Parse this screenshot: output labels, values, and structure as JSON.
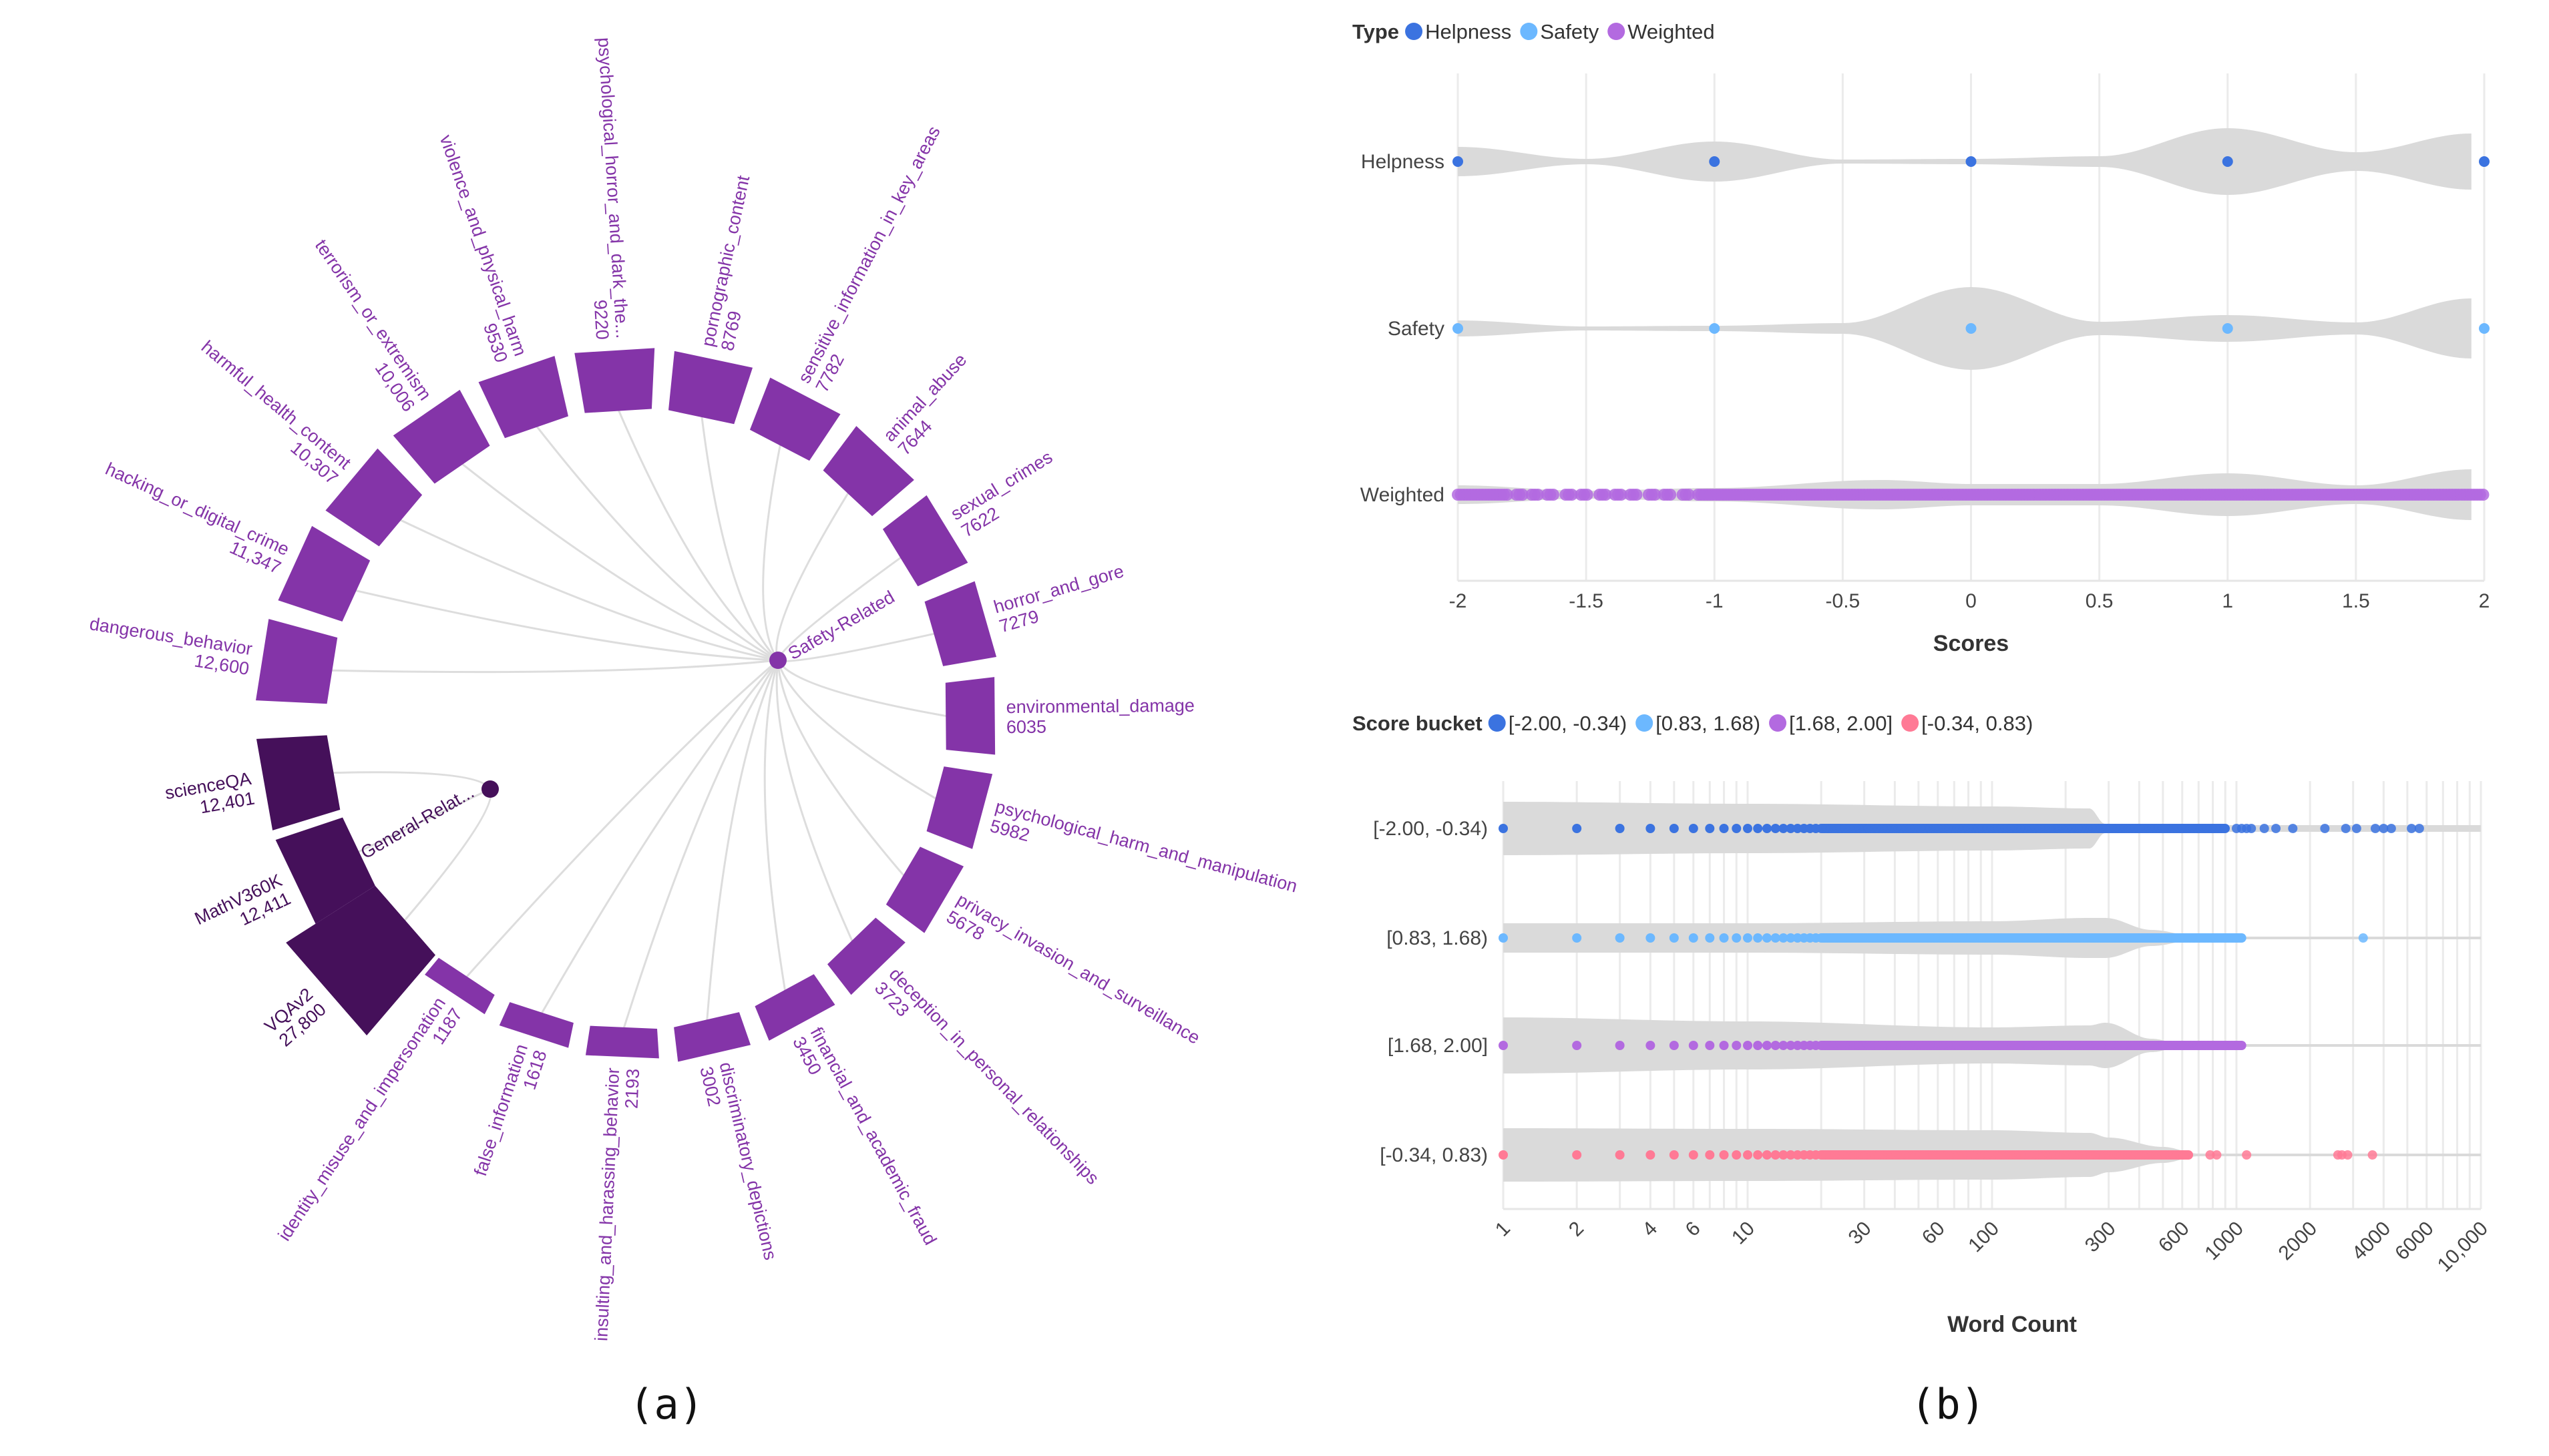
{
  "captions": {
    "a": "(a)",
    "b": "(b)"
  },
  "chart_data": [
    {
      "type": "radial-bar",
      "colors": {
        "Safety-Related": "#8434A8",
        "General-Related": "#45105A",
        "link": "#dddddd"
      },
      "groups": [
        {
          "name": "Safety-Related",
          "label": "Safety-Related"
        },
        {
          "name": "General-Related",
          "label": "General-Relat..."
        }
      ],
      "items": [
        {
          "name": "dangerous_behavior",
          "value": 12600,
          "group": "Safety-Related"
        },
        {
          "name": "hacking_or_digital_crime",
          "value": 11347,
          "group": "Safety-Related"
        },
        {
          "name": "harmful_health_content",
          "value": 10307,
          "group": "Safety-Related"
        },
        {
          "name": "terrorism_or_extremism",
          "value": 10006,
          "group": "Safety-Related"
        },
        {
          "name": "violence_and_physical_harm",
          "value": 9530,
          "group": "Safety-Related"
        },
        {
          "name": "psychological_horror_and_dark_the...",
          "value": 9220,
          "group": "Safety-Related"
        },
        {
          "name": "pornographic_content",
          "value": 8769,
          "group": "Safety-Related"
        },
        {
          "name": "sensitive_information_in_key_areas",
          "value": 7782,
          "group": "Safety-Related"
        },
        {
          "name": "animal_abuse",
          "value": 7644,
          "group": "Safety-Related"
        },
        {
          "name": "sexual_crimes",
          "value": 7622,
          "group": "Safety-Related"
        },
        {
          "name": "horror_and_gore",
          "value": 7279,
          "group": "Safety-Related"
        },
        {
          "name": "environmental_damage",
          "value": 6035,
          "group": "Safety-Related"
        },
        {
          "name": "psychological_harm_and_manipulation",
          "value": 5982,
          "group": "Safety-Related"
        },
        {
          "name": "privacy_invasion_and_surveillance",
          "value": 5678,
          "group": "Safety-Related"
        },
        {
          "name": "deception_in_personal_relationships",
          "value": 3723,
          "group": "Safety-Related"
        },
        {
          "name": "financial_and_academic_fraud",
          "value": 3450,
          "group": "Safety-Related"
        },
        {
          "name": "discriminatory_depictions",
          "value": 3002,
          "group": "Safety-Related"
        },
        {
          "name": "insulting_and_harassing_behavior",
          "value": 2193,
          "group": "Safety-Related"
        },
        {
          "name": "false_information",
          "value": 1618,
          "group": "Safety-Related"
        },
        {
          "name": "identity_misuse_and_impersonation",
          "value": 1187,
          "group": "Safety-Related"
        },
        {
          "name": "VQAv2",
          "value": 27800,
          "group": "General-Related"
        },
        {
          "name": "MathV360K",
          "value": 12411,
          "group": "General-Related"
        },
        {
          "name": "scienceQA",
          "value": 12401,
          "group": "General-Related"
        }
      ]
    },
    {
      "type": "violin",
      "orientation": "horizontal",
      "legend_title": "Type",
      "legend_placement": "top-left",
      "xlabel": "Scores",
      "xlim": [
        -2,
        2
      ],
      "xticks": [
        "-2",
        "-1.5",
        "-1",
        "-0.5",
        "0",
        "0.5",
        "1",
        "1.5",
        "2"
      ],
      "grid": true,
      "violin_color": "#dadada",
      "series": [
        {
          "name": "Helpness",
          "color": "#3B73E0",
          "points": [
            -2,
            -1,
            0,
            1,
            2
          ],
          "density": [
            [
              -2,
              0.22
            ],
            [
              -1.5,
              0.04
            ],
            [
              -1,
              0.3
            ],
            [
              -0.5,
              0.03
            ],
            [
              0,
              0.04
            ],
            [
              0.5,
              0.08
            ],
            [
              1,
              0.5
            ],
            [
              1.5,
              0.14
            ],
            [
              1.95,
              0.42
            ]
          ]
        },
        {
          "name": "Safety",
          "color": "#6CB8FF",
          "points": [
            -2,
            -1,
            0,
            1,
            2
          ],
          "density": [
            [
              -2,
              0.12
            ],
            [
              -1.5,
              0.03
            ],
            [
              -1,
              0.04
            ],
            [
              -0.5,
              0.08
            ],
            [
              0,
              0.62
            ],
            [
              0.5,
              0.1
            ],
            [
              1,
              0.2
            ],
            [
              1.5,
              0.09
            ],
            [
              1.95,
              0.45
            ]
          ]
        },
        {
          "name": "Weighted",
          "color": "#B36AE0",
          "points_range": [
            -2,
            2
          ],
          "density": [
            [
              -2,
              0.14
            ],
            [
              -1.5,
              0.06
            ],
            [
              -1,
              0.1
            ],
            [
              -0.35,
              0.22
            ],
            [
              0,
              0.16
            ],
            [
              0.5,
              0.16
            ],
            [
              1,
              0.32
            ],
            [
              1.5,
              0.14
            ],
            [
              1.95,
              0.38
            ]
          ]
        }
      ]
    },
    {
      "type": "violin-strip",
      "orientation": "horizontal",
      "legend_title": "Score bucket",
      "legend_placement": "top-left",
      "xlabel": "Word Count",
      "xscale": "log",
      "xlim": [
        1,
        10000
      ],
      "xticks": [
        "1",
        "2",
        "4",
        "6",
        "10",
        "30",
        "60",
        "100",
        "300",
        "600",
        "1000",
        "2000",
        "4000",
        "6000",
        "10,000"
      ],
      "grid": true,
      "violin_color": "#dadada",
      "series": [
        {
          "name": "[-2.00, -0.34)",
          "color": "#3B73E0",
          "dense_max": 900,
          "outliers": [
            1000,
            1050,
            1100,
            1150,
            1300,
            1450,
            1700,
            2300,
            2800,
            3100,
            3700,
            4000,
            4300,
            5200,
            5600
          ],
          "density": [
            [
              1,
              0.4
            ],
            [
              10,
              0.37
            ],
            [
              100,
              0.33
            ],
            [
              250,
              0.3
            ],
            [
              290,
              0.07
            ],
            [
              1000,
              0.05
            ],
            [
              10000,
              0.05
            ]
          ]
        },
        {
          "name": "[0.83, 1.68)",
          "color": "#6CB8FF",
          "dense_max": 1050,
          "outliers": [
            3300
          ],
          "density": [
            [
              1,
              0.22
            ],
            [
              10,
              0.22
            ],
            [
              100,
              0.25
            ],
            [
              250,
              0.3
            ],
            [
              290,
              0.3
            ],
            [
              450,
              0.12
            ],
            [
              700,
              0.02
            ],
            [
              10000,
              0.02
            ]
          ]
        },
        {
          "name": "[1.68, 2.00]",
          "color": "#B36AE0",
          "dense_max": 1050,
          "outliers": [],
          "density": [
            [
              1,
              0.42
            ],
            [
              10,
              0.36
            ],
            [
              100,
              0.27
            ],
            [
              250,
              0.3
            ],
            [
              290,
              0.34
            ],
            [
              450,
              0.1
            ],
            [
              600,
              0.02
            ],
            [
              10000,
              0.02
            ]
          ]
        },
        {
          "name": "[-0.34, 0.83)",
          "color": "#FF7A95",
          "dense_max": 640,
          "outliers": [
            780,
            830,
            1100,
            2600,
            2700,
            2850,
            3600
          ],
          "density": [
            [
              1,
              0.4
            ],
            [
              10,
              0.39
            ],
            [
              100,
              0.37
            ],
            [
              250,
              0.33
            ],
            [
              300,
              0.26
            ],
            [
              500,
              0.12
            ],
            [
              700,
              0.02
            ],
            [
              10000,
              0.02
            ]
          ]
        }
      ]
    }
  ]
}
